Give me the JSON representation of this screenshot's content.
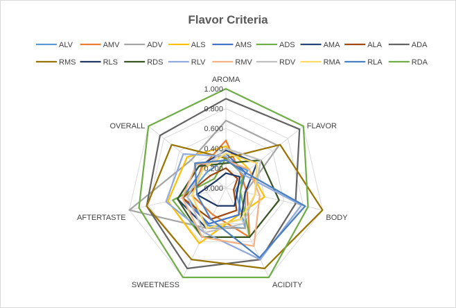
{
  "chart_data": {
    "type": "radar",
    "title": "Flavor Criteria",
    "axes": [
      "AROMA",
      "FLAVOR",
      "BODY",
      "ACIDITY",
      "SWEETNESS",
      "AFTERTASTE",
      "OVERALL"
    ],
    "rlim": [
      0,
      1.0
    ],
    "ticks": [
      "0.000",
      "0.200",
      "0.400",
      "0.600",
      "0.800",
      "1.000"
    ],
    "grid": true,
    "legend_position": "top",
    "series": [
      {
        "name": "ALV",
        "color": "#5b9bd5",
        "values": [
          0.3,
          0.28,
          0.1,
          0.45,
          0.42,
          0.4,
          0.25
        ]
      },
      {
        "name": "AMV",
        "color": "#ed7d31",
        "values": [
          0.48,
          0.2,
          0.22,
          0.55,
          0.3,
          0.35,
          0.32
        ]
      },
      {
        "name": "ADV",
        "color": "#a5a5a5",
        "values": [
          0.68,
          0.68,
          0.2,
          0.45,
          0.45,
          1.0,
          0.45
        ]
      },
      {
        "name": "ALS",
        "color": "#ffc000",
        "values": [
          0.42,
          0.3,
          0.4,
          0.3,
          0.62,
          0.6,
          0.5
        ]
      },
      {
        "name": "AMS",
        "color": "#4472c4",
        "values": [
          0.35,
          0.25,
          0.15,
          0.3,
          0.4,
          0.45,
          0.3
        ]
      },
      {
        "name": "ADS",
        "color": "#70ad47",
        "values": [
          0.3,
          0.22,
          0.15,
          0.55,
          0.55,
          0.55,
          0.15
        ]
      },
      {
        "name": "AMA",
        "color": "#264478",
        "values": [
          0.38,
          0.4,
          0.2,
          0.35,
          0.45,
          0.5,
          0.35
        ]
      },
      {
        "name": "ALA",
        "color": "#9e480e",
        "values": [
          0.2,
          0.15,
          0.08,
          0.25,
          0.35,
          0.45,
          0.2
        ]
      },
      {
        "name": "ADA",
        "color": "#636363",
        "values": [
          0.9,
          0.95,
          0.72,
          0.8,
          0.9,
          0.82,
          0.85
        ]
      },
      {
        "name": "RMS",
        "color": "#997300",
        "values": [
          0.3,
          0.7,
          1.0,
          0.9,
          0.8,
          0.82,
          0.7
        ]
      },
      {
        "name": "RLS",
        "color": "#1f3864",
        "values": [
          0.15,
          0.18,
          0.12,
          0.2,
          0.2,
          0.3,
          0.12
        ]
      },
      {
        "name": "RDS",
        "color": "#375623",
        "values": [
          0.25,
          0.45,
          0.55,
          0.55,
          0.55,
          0.5,
          0.35
        ]
      },
      {
        "name": "RLV",
        "color": "#8faadc",
        "values": [
          0.32,
          0.22,
          0.78,
          0.8,
          0.5,
          0.62,
          0.55
        ]
      },
      {
        "name": "RMV",
        "color": "#f4b183",
        "values": [
          0.28,
          0.3,
          0.35,
          0.65,
          0.55,
          0.45,
          0.38
        ]
      },
      {
        "name": "RDV",
        "color": "#bfbfbf",
        "values": [
          0.4,
          0.45,
          0.3,
          0.4,
          0.5,
          0.4,
          0.3
        ]
      },
      {
        "name": "RMA",
        "color": "#ffd966",
        "values": [
          0.35,
          0.4,
          0.3,
          0.35,
          0.45,
          0.35,
          0.3
        ]
      },
      {
        "name": "RLA",
        "color": "#4a7fc1",
        "values": [
          0.28,
          0.25,
          0.82,
          0.78,
          0.35,
          0.3,
          0.4
        ]
      },
      {
        "name": "RDA",
        "color": "#70ad47",
        "values": [
          1.0,
          1.0,
          0.85,
          1.0,
          1.0,
          0.9,
          1.0
        ]
      }
    ]
  }
}
